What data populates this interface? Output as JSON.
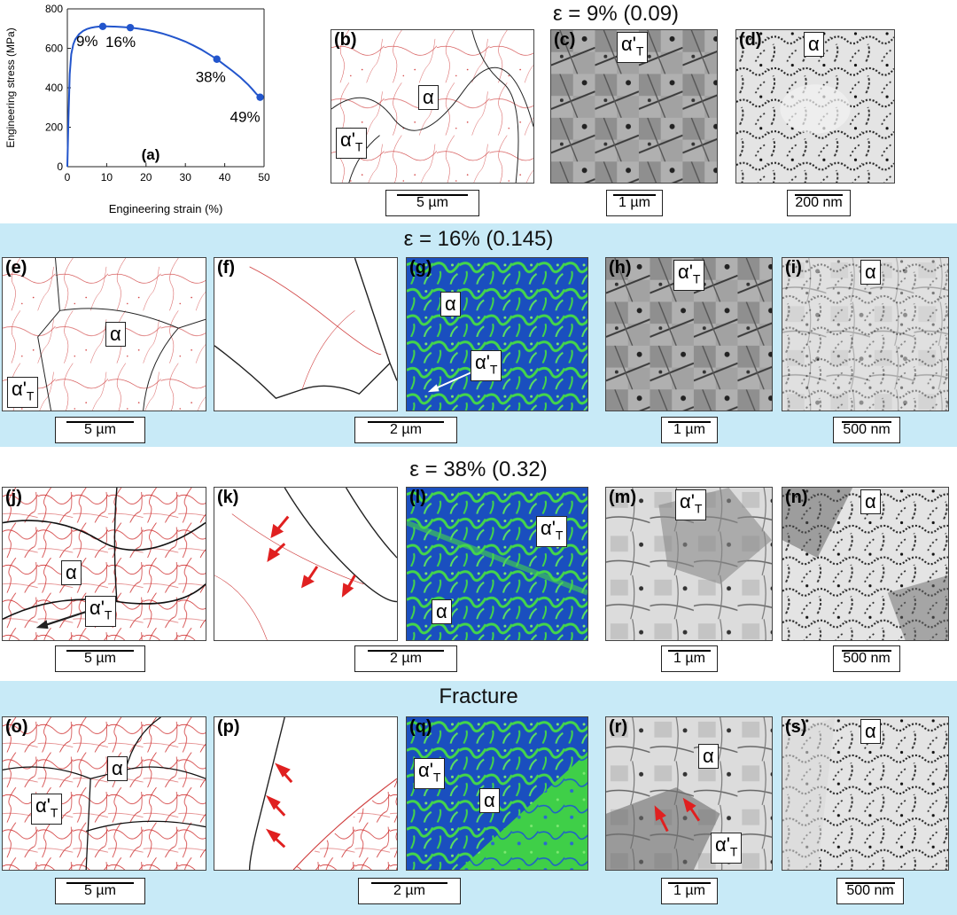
{
  "chart_data": {
    "type": "line",
    "title": "",
    "panel_label": "(a)",
    "xlabel": "Engineering strain (%)",
    "ylabel": "Engineering stress (MPa)",
    "xlim": [
      0,
      50
    ],
    "ylim": [
      0,
      800
    ],
    "xticks": [
      "0",
      "10",
      "20",
      "30",
      "40",
      "50"
    ],
    "yticks": [
      "0",
      "200",
      "400",
      "600",
      "800"
    ],
    "curve": {
      "x": [
        0,
        0.3,
        0.6,
        1,
        1.5,
        2,
        3,
        4,
        5,
        6,
        7,
        8,
        9,
        10,
        12,
        14,
        16,
        18,
        20,
        22,
        24,
        26,
        28,
        30,
        32,
        34,
        36,
        38,
        40,
        42,
        44,
        46,
        47,
        48,
        49
      ],
      "y": [
        0,
        250,
        470,
        570,
        620,
        645,
        672,
        688,
        698,
        704,
        708,
        710,
        711,
        711,
        710,
        708,
        705,
        700,
        694,
        686,
        676,
        664,
        650,
        634,
        615,
        594,
        570,
        545,
        515,
        485,
        452,
        415,
        393,
        370,
        352
      ]
    },
    "markers": [
      {
        "x": 9,
        "y": 711,
        "label": "9%"
      },
      {
        "x": 16,
        "y": 705,
        "label": "16%"
      },
      {
        "x": 38,
        "y": 545,
        "label": "38%"
      },
      {
        "x": 49,
        "y": 352,
        "label": "49%"
      }
    ],
    "line_color": "#2255cc"
  },
  "sections": {
    "s9": "ε = 9% (0.09)",
    "s16": "ε = 16% (0.145)",
    "s38": "ε = 38% (0.32)",
    "frac": "Fracture"
  },
  "labels": {
    "b": "(b)",
    "c": "(c)",
    "d": "(d)",
    "e": "(e)",
    "f": "(f)",
    "g": "(g)",
    "h": "(h)",
    "i": "(i)",
    "j": "(j)",
    "k": "(k)",
    "l": "(l)",
    "m": "(m)",
    "n": "(n)",
    "o": "(o)",
    "p": "(p)",
    "q": "(q)",
    "r": "(r)",
    "s": "(s)"
  },
  "phases": {
    "alpha": "α",
    "alpha_prime": "α'",
    "sub": "T"
  },
  "scales": {
    "um5": "5 µm",
    "um1": "1 µm",
    "nm200": "200 nm",
    "um2": "2 µm",
    "nm500": "500 nm"
  },
  "colors": {
    "band": "#c8eaf7",
    "arrow_red": "#e02020",
    "kam_blue": "#1a4fbf",
    "kam_green": "#44d64a"
  }
}
